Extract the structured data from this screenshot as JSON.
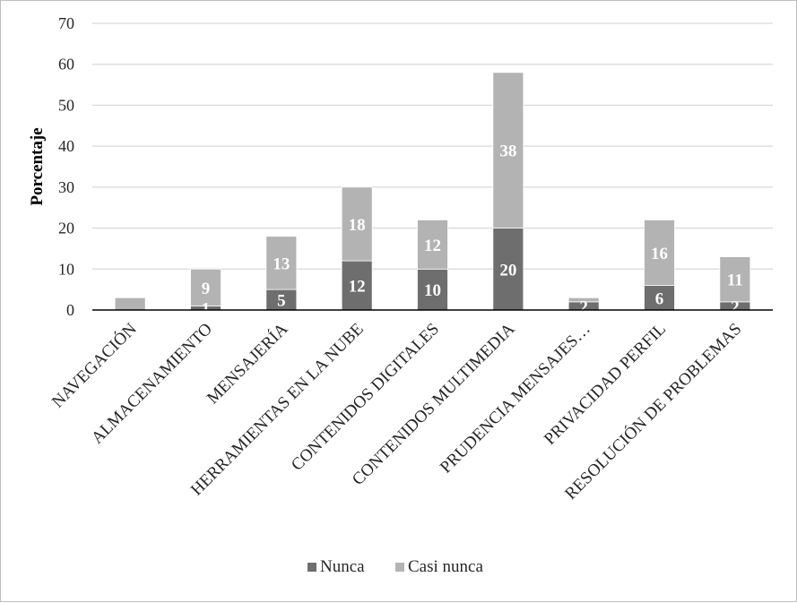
{
  "chart_data": {
    "type": "bar",
    "stacked": true,
    "title": "",
    "xlabel": "",
    "ylabel": "Porcentaje",
    "ylim": [
      0,
      70
    ],
    "yticks": [
      0,
      10,
      20,
      30,
      40,
      50,
      60,
      70
    ],
    "grid": "horizontal",
    "legend_position": "bottom",
    "categories": [
      "NAVEGACIÓN",
      "ALMACENAMIENTO",
      "MENSAJERÍA",
      "HERRAMIENTAS EN LA NUBE",
      "CONTENIDOS DIGITALES",
      "CONTENIDOS MULTIMEDIA",
      "PRUDENCIA MENSAJES…",
      "PRIVACIDAD PERFIL",
      "RESOLUCIÓN DE PROBLEMAS"
    ],
    "series": [
      {
        "name": "Nunca",
        "color": "#6e6e6e",
        "values": [
          0,
          1,
          5,
          12,
          10,
          20,
          2,
          6,
          2
        ],
        "labels": [
          "",
          "1",
          "5",
          "12",
          "10",
          "20",
          "2",
          "6",
          "2"
        ]
      },
      {
        "name": "Casi nunca",
        "color": "#b3b3b3",
        "values": [
          3,
          9,
          13,
          18,
          12,
          38,
          1,
          16,
          11
        ],
        "labels": [
          "",
          "9",
          "13",
          "18",
          "12",
          "38",
          "",
          "16",
          "11"
        ]
      }
    ]
  }
}
